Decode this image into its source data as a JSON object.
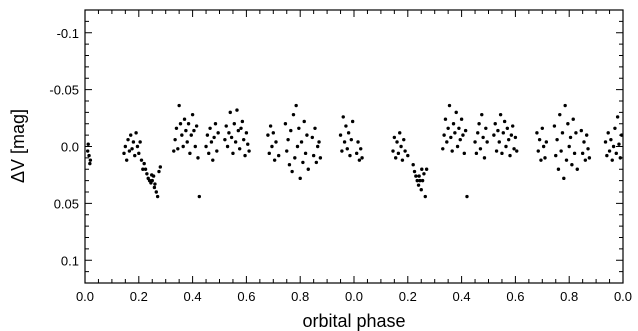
{
  "chart_data": {
    "type": "scatter",
    "title": "",
    "xlabel": "orbital phase",
    "ylabel": "ΔV [mag]",
    "xlim": [
      0.0,
      2.0
    ],
    "ylim": [
      0.12,
      -0.12
    ],
    "y_inverted": true,
    "grid": false,
    "x_tick_labels": [
      "0.0",
      "0.2",
      "0.4",
      "0.6",
      "0.8",
      "0.0",
      "0.2",
      "0.4",
      "0.6",
      "0.8",
      "0.0"
    ],
    "y_tick_labels": [
      "-0.1",
      "-0.05",
      "0.0",
      "0.05",
      "0.1"
    ],
    "y_tick_values": [
      -0.1,
      -0.05,
      0.0,
      0.05,
      0.1
    ],
    "marker_color": "#000000",
    "series": [
      {
        "points": [
          [
            0.01,
            0.004
          ],
          [
            0.015,
            0.008
          ],
          [
            0.02,
            0.012
          ],
          [
            0.012,
            -0.002
          ],
          [
            0.018,
            0.015
          ],
          [
            0.145,
            0.006
          ],
          [
            0.15,
            0.0
          ],
          [
            0.155,
            0.012
          ],
          [
            0.16,
            -0.006
          ],
          [
            0.165,
            0.004
          ],
          [
            0.17,
            -0.01
          ],
          [
            0.175,
            0.002
          ],
          [
            0.18,
            -0.004
          ],
          [
            0.185,
            0.008
          ],
          [
            0.19,
            -0.012
          ],
          [
            0.195,
            0.0
          ],
          [
            0.2,
            0.006
          ],
          [
            0.205,
            -0.004
          ],
          [
            0.21,
            0.012
          ],
          [
            0.215,
            0.02
          ],
          [
            0.22,
            0.015
          ],
          [
            0.225,
            0.02
          ],
          [
            0.23,
            0.024
          ],
          [
            0.235,
            0.028
          ],
          [
            0.24,
            0.03
          ],
          [
            0.245,
            0.032
          ],
          [
            0.25,
            0.03
          ],
          [
            0.255,
            0.026
          ],
          [
            0.26,
            0.033
          ],
          [
            0.265,
            0.04
          ],
          [
            0.27,
            0.044
          ],
          [
            0.275,
            0.022
          ],
          [
            0.28,
            0.018
          ],
          [
            0.258,
            0.036
          ],
          [
            0.248,
            0.025
          ],
          [
            0.33,
            0.004
          ],
          [
            0.335,
            -0.006
          ],
          [
            0.34,
            -0.016
          ],
          [
            0.345,
            0.002
          ],
          [
            0.35,
            -0.036
          ],
          [
            0.355,
            -0.02
          ],
          [
            0.36,
            -0.01
          ],
          [
            0.365,
            0.0
          ],
          [
            0.37,
            -0.024
          ],
          [
            0.375,
            -0.014
          ],
          [
            0.38,
            -0.004
          ],
          [
            0.385,
            -0.02
          ],
          [
            0.39,
            0.006
          ],
          [
            0.395,
            -0.01
          ],
          [
            0.4,
            -0.028
          ],
          [
            0.405,
            -0.014
          ],
          [
            0.41,
            0.0
          ],
          [
            0.415,
            -0.018
          ],
          [
            0.42,
            0.01
          ],
          [
            0.425,
            0.044
          ],
          [
            0.45,
            0.0
          ],
          [
            0.455,
            -0.01
          ],
          [
            0.46,
            0.006
          ],
          [
            0.465,
            -0.016
          ],
          [
            0.47,
            -0.004
          ],
          [
            0.475,
            0.012
          ],
          [
            0.48,
            -0.008
          ],
          [
            0.485,
            -0.02
          ],
          [
            0.49,
            0.004
          ],
          [
            0.495,
            -0.012
          ],
          [
            0.52,
            -0.006
          ],
          [
            0.525,
            -0.018
          ],
          [
            0.53,
            0.0
          ],
          [
            0.535,
            -0.012
          ],
          [
            0.54,
            -0.03
          ],
          [
            0.545,
            -0.008
          ],
          [
            0.55,
            0.006
          ],
          [
            0.555,
            -0.02
          ],
          [
            0.56,
            -0.004
          ],
          [
            0.565,
            -0.032
          ],
          [
            0.57,
            -0.014
          ],
          [
            0.575,
            0.002
          ],
          [
            0.58,
            -0.016
          ],
          [
            0.585,
            -0.022
          ],
          [
            0.59,
            -0.006
          ],
          [
            0.595,
            0.008
          ],
          [
            0.6,
            -0.012
          ],
          [
            0.605,
            -0.002
          ],
          [
            0.61,
            0.004
          ],
          [
            0.68,
            -0.01
          ],
          [
            0.685,
            0.006
          ],
          [
            0.69,
            -0.018
          ],
          [
            0.695,
            0.0
          ],
          [
            0.7,
            -0.012
          ],
          [
            0.705,
            0.012
          ],
          [
            0.71,
            -0.004
          ],
          [
            0.72,
            0.008
          ],
          [
            0.745,
            -0.02
          ],
          [
            0.75,
            0.004
          ],
          [
            0.755,
            -0.006
          ],
          [
            0.76,
            0.016
          ],
          [
            0.765,
            -0.014
          ],
          [
            0.77,
            0.022
          ],
          [
            0.775,
            -0.028
          ],
          [
            0.78,
            0.01
          ],
          [
            0.785,
            -0.036
          ],
          [
            0.79,
            0.0
          ],
          [
            0.795,
            -0.016
          ],
          [
            0.8,
            0.028
          ],
          [
            0.805,
            -0.004
          ],
          [
            0.81,
            0.014
          ],
          [
            0.815,
            -0.022
          ],
          [
            0.82,
            0.006
          ],
          [
            0.825,
            -0.01
          ],
          [
            0.83,
            0.02
          ],
          [
            0.845,
            -0.008
          ],
          [
            0.85,
            0.008
          ],
          [
            0.855,
            -0.016
          ],
          [
            0.86,
            0.014
          ],
          [
            0.865,
            0.0
          ],
          [
            0.87,
            -0.004
          ],
          [
            0.875,
            0.01
          ],
          [
            0.95,
            -0.01
          ],
          [
            0.955,
            0.004
          ],
          [
            0.96,
            -0.026
          ],
          [
            0.965,
            -0.004
          ],
          [
            0.97,
            -0.018
          ],
          [
            0.975,
            0.002
          ],
          [
            0.98,
            -0.012
          ],
          [
            0.985,
            0.008
          ],
          [
            0.99,
            -0.006
          ],
          [
            0.995,
            -0.022
          ],
          [
            1.01,
            0.006
          ],
          [
            1.015,
            -0.004
          ],
          [
            1.02,
            0.012
          ],
          [
            1.025,
            0.002
          ],
          [
            1.03,
            0.01
          ],
          [
            1.145,
            0.004
          ],
          [
            1.15,
            -0.008
          ],
          [
            1.155,
            0.01
          ],
          [
            1.16,
            -0.004
          ],
          [
            1.165,
            0.006
          ],
          [
            1.17,
            -0.012
          ],
          [
            1.175,
            0.0
          ],
          [
            1.18,
            0.012
          ],
          [
            1.185,
            -0.006
          ],
          [
            1.19,
            0.004
          ],
          [
            1.2,
            0.008
          ],
          [
            1.22,
            0.016
          ],
          [
            1.225,
            0.022
          ],
          [
            1.23,
            0.026
          ],
          [
            1.235,
            0.03
          ],
          [
            1.24,
            0.034
          ],
          [
            1.245,
            0.03
          ],
          [
            1.25,
            0.038
          ],
          [
            1.255,
            0.03
          ],
          [
            1.26,
            0.024
          ],
          [
            1.265,
            0.044
          ],
          [
            1.27,
            0.02
          ],
          [
            1.242,
            0.026
          ],
          [
            1.252,
            0.02
          ],
          [
            1.33,
            0.002
          ],
          [
            1.335,
            -0.01
          ],
          [
            1.34,
            -0.024
          ],
          [
            1.345,
            -0.004
          ],
          [
            1.35,
            -0.016
          ],
          [
            1.355,
            -0.036
          ],
          [
            1.36,
            -0.008
          ],
          [
            1.365,
            0.004
          ],
          [
            1.37,
            -0.02
          ],
          [
            1.375,
            -0.012
          ],
          [
            1.38,
            -0.03
          ],
          [
            1.385,
            0.0
          ],
          [
            1.39,
            -0.016
          ],
          [
            1.395,
            -0.006
          ],
          [
            1.4,
            -0.024
          ],
          [
            1.405,
            -0.01
          ],
          [
            1.41,
            0.006
          ],
          [
            1.415,
            -0.014
          ],
          [
            1.42,
            0.044
          ],
          [
            1.45,
            -0.004
          ],
          [
            1.455,
            0.006
          ],
          [
            1.46,
            -0.012
          ],
          [
            1.465,
            -0.02
          ],
          [
            1.47,
            0.002
          ],
          [
            1.475,
            -0.028
          ],
          [
            1.48,
            -0.008
          ],
          [
            1.485,
            0.01
          ],
          [
            1.49,
            -0.016
          ],
          [
            1.495,
            -0.004
          ],
          [
            1.52,
            -0.01
          ],
          [
            1.525,
            -0.02
          ],
          [
            1.53,
            0.004
          ],
          [
            1.535,
            -0.014
          ],
          [
            1.54,
            -0.004
          ],
          [
            1.545,
            -0.028
          ],
          [
            1.55,
            0.006
          ],
          [
            1.555,
            -0.012
          ],
          [
            1.56,
            -0.022
          ],
          [
            1.565,
            0.0
          ],
          [
            1.57,
            -0.016
          ],
          [
            1.575,
            -0.006
          ],
          [
            1.58,
            0.008
          ],
          [
            1.585,
            -0.01
          ],
          [
            1.59,
            -0.018
          ],
          [
            1.595,
            0.002
          ],
          [
            1.6,
            -0.008
          ],
          [
            1.605,
            0.004
          ],
          [
            1.68,
            -0.012
          ],
          [
            1.685,
            0.004
          ],
          [
            1.69,
            -0.006
          ],
          [
            1.695,
            0.012
          ],
          [
            1.7,
            -0.016
          ],
          [
            1.705,
            0.0
          ],
          [
            1.71,
            0.01
          ],
          [
            1.715,
            -0.004
          ],
          [
            1.745,
            -0.018
          ],
          [
            1.75,
            0.008
          ],
          [
            1.755,
            -0.006
          ],
          [
            1.76,
            0.02
          ],
          [
            1.765,
            -0.028
          ],
          [
            1.77,
            0.004
          ],
          [
            1.775,
            -0.012
          ],
          [
            1.78,
            0.028
          ],
          [
            1.785,
            -0.036
          ],
          [
            1.79,
            0.012
          ],
          [
            1.795,
            -0.02
          ],
          [
            1.8,
            0.0
          ],
          [
            1.805,
            -0.008
          ],
          [
            1.81,
            0.016
          ],
          [
            1.815,
            -0.024
          ],
          [
            1.82,
            0.006
          ],
          [
            1.825,
            -0.012
          ],
          [
            1.83,
            0.02
          ],
          [
            1.845,
            -0.014
          ],
          [
            1.85,
            0.006
          ],
          [
            1.855,
            -0.004
          ],
          [
            1.86,
            0.012
          ],
          [
            1.865,
            -0.01
          ],
          [
            1.87,
            0.002
          ],
          [
            1.875,
            0.01
          ],
          [
            1.935,
            -0.004
          ],
          [
            1.94,
            0.008
          ],
          [
            1.945,
            -0.012
          ],
          [
            1.95,
            0.004
          ],
          [
            1.955,
            -0.006
          ],
          [
            1.96,
            0.012
          ],
          [
            1.965,
            0.0
          ],
          [
            1.97,
            -0.016
          ],
          [
            1.975,
            0.006
          ],
          [
            1.98,
            -0.026
          ],
          [
            1.985,
            -0.002
          ],
          [
            1.99,
            0.01
          ],
          [
            1.995,
            -0.01
          ]
        ]
      }
    ]
  }
}
